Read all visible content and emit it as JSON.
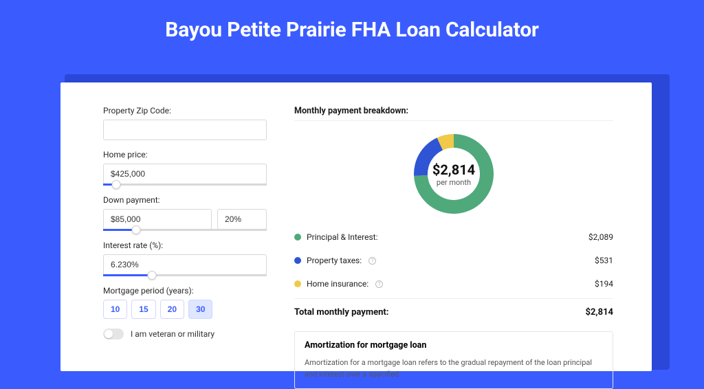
{
  "page": {
    "title": "Bayou Petite Prairie FHA Loan Calculator",
    "background_color": "#3a5cff",
    "shadow_color": "#2a47d8",
    "card_bg": "#ffffff"
  },
  "form": {
    "zip": {
      "label": "Property Zip Code:",
      "value": ""
    },
    "home_price": {
      "label": "Home price:",
      "value": "$425,000",
      "slider_pct": 8
    },
    "down_payment": {
      "label": "Down payment:",
      "amount": "$85,000",
      "pct": "20%",
      "slider_pct": 20
    },
    "interest_rate": {
      "label": "Interest rate (%):",
      "value": "6.230%",
      "slider_pct": 30
    },
    "mortgage_period": {
      "label": "Mortgage period (years):",
      "options": [
        "10",
        "15",
        "20",
        "30"
      ],
      "selected": "30"
    },
    "veteran": {
      "label": "I am veteran or military",
      "checked": false
    }
  },
  "breakdown": {
    "title": "Monthly payment breakdown:",
    "donut": {
      "type": "donut",
      "center_value": "$2,814",
      "center_sub": "per month",
      "outer_radius": 58,
      "inner_radius": 38,
      "background_color": "#ffffff",
      "slices": [
        {
          "label": "Principal & Interest",
          "value": 2089,
          "pct": 74.2,
          "color": "#4fa97a"
        },
        {
          "label": "Property taxes",
          "value": 531,
          "pct": 18.9,
          "color": "#2f55d4"
        },
        {
          "label": "Home insurance",
          "value": 194,
          "pct": 6.9,
          "color": "#f0c94a"
        }
      ]
    },
    "rows": [
      {
        "label": "Principal & Interest:",
        "value": "$2,089",
        "color": "#4fa97a",
        "info": false
      },
      {
        "label": "Property taxes:",
        "value": "$531",
        "color": "#2f55d4",
        "info": true
      },
      {
        "label": "Home insurance:",
        "value": "$194",
        "color": "#f0c94a",
        "info": true
      }
    ],
    "total": {
      "label": "Total monthly payment:",
      "value": "$2,814"
    }
  },
  "amortization": {
    "title": "Amortization for mortgage loan",
    "body": "Amortization for a mortgage loan refers to the gradual repayment of the loan principal and interest over a specified"
  }
}
